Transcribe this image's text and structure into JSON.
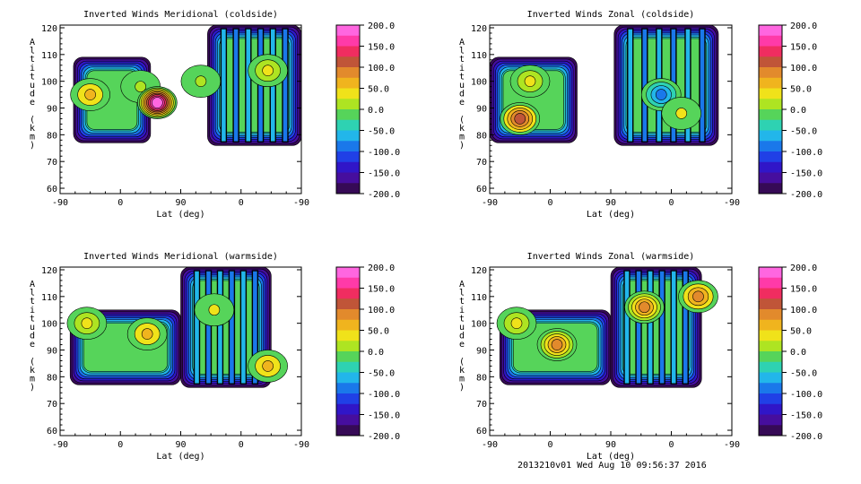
{
  "footer": "2013210v01 Wed Aug 10 09:56:37 2016",
  "colorbar": {
    "labels": [
      "200.0",
      "150.0",
      "100.0",
      "50.0",
      "0.0",
      "-50.0",
      "-100.0",
      "-150.0",
      "-200.0"
    ],
    "colors_top_to_bottom": [
      "#ff66e0",
      "#ff3aa8",
      "#f02d60",
      "#c05538",
      "#e28a2c",
      "#f0b41e",
      "#f0e21a",
      "#aee422",
      "#56d45a",
      "#2ed2b2",
      "#22b6ea",
      "#1a78ea",
      "#2040e6",
      "#3016c8",
      "#460e9e",
      "#360a56"
    ]
  },
  "chart_data": [
    {
      "type": "heatmap",
      "title": "Inverted Winds Meridional (coldside)",
      "xlabel": "Lat (deg)",
      "ylabel": "Altitude (km)",
      "x_ticks": [
        "-90",
        "0",
        "90",
        "0",
        "-90"
      ],
      "y_ticks": [
        60,
        70,
        80,
        90,
        100,
        110,
        120
      ],
      "ylim": [
        58,
        121
      ],
      "zlim": [
        -200,
        200
      ],
      "x_segment_order": [
        "-90 to 90 (ascending)",
        "90 to -90 (descending)"
      ],
      "blobs": [
        {
          "segment": "left",
          "lat": -45,
          "alt": 95,
          "value": 60
        },
        {
          "segment": "left",
          "lat": 30,
          "alt": 98,
          "value": 10
        },
        {
          "segment": "left",
          "lat": 55,
          "alt": 92,
          "value": 190
        },
        {
          "segment": "right",
          "lat": 60,
          "alt": 100,
          "value": 20
        },
        {
          "segment": "right",
          "lat": -40,
          "alt": 104,
          "value": 50
        }
      ]
    },
    {
      "type": "heatmap",
      "title": "Inverted Winds Zonal (coldside)",
      "xlabel": "Lat (deg)",
      "ylabel": "Altitude (km)",
      "x_ticks": [
        "-90",
        "0",
        "90",
        "0",
        "-90"
      ],
      "y_ticks": [
        60,
        70,
        80,
        90,
        100,
        110,
        120
      ],
      "ylim": [
        58,
        121
      ],
      "zlim": [
        -200,
        200
      ],
      "x_segment_order": [
        "-90 to 90 (ascending)",
        "90 to -90 (descending)"
      ],
      "blobs": [
        {
          "segment": "left",
          "lat": -45,
          "alt": 86,
          "value": 110
        },
        {
          "segment": "left",
          "lat": -30,
          "alt": 100,
          "value": 40
        },
        {
          "segment": "right",
          "lat": 15,
          "alt": 95,
          "value": -80
        },
        {
          "segment": "right",
          "lat": -15,
          "alt": 88,
          "value": 30
        }
      ]
    },
    {
      "type": "heatmap",
      "title": "Inverted Winds Meridional (warmside)",
      "xlabel": "Lat (deg)",
      "ylabel": "Altitude (km)",
      "x_ticks": [
        "-90",
        "0",
        "90",
        "0",
        "-90"
      ],
      "y_ticks": [
        60,
        70,
        80,
        90,
        100,
        110,
        120
      ],
      "ylim": [
        58,
        121
      ],
      "zlim": [
        -200,
        200
      ],
      "x_segment_order": [
        "-90 to 90 (ascending)",
        "90 to -90 (descending)"
      ],
      "blobs": [
        {
          "segment": "left",
          "lat": -50,
          "alt": 100,
          "value": 50
        },
        {
          "segment": "left",
          "lat": 40,
          "alt": 96,
          "value": 60
        },
        {
          "segment": "right",
          "lat": -40,
          "alt": 84,
          "value": 60
        },
        {
          "segment": "right",
          "lat": 40,
          "alt": 105,
          "value": 30
        }
      ]
    },
    {
      "type": "heatmap",
      "title": "Inverted Winds Zonal (warmside)",
      "xlabel": "Lat (deg)",
      "ylabel": "Altitude (km)",
      "x_ticks": [
        "-90",
        "0",
        "90",
        "0",
        "-90"
      ],
      "y_ticks": [
        60,
        70,
        80,
        90,
        100,
        110,
        120
      ],
      "ylim": [
        58,
        121
      ],
      "zlim": [
        -200,
        200
      ],
      "x_segment_order": [
        "-90 to 90 (ascending)",
        "90 to -90 (descending)"
      ],
      "blobs": [
        {
          "segment": "left",
          "lat": 10,
          "alt": 92,
          "value": 90
        },
        {
          "segment": "left",
          "lat": -50,
          "alt": 100,
          "value": 50
        },
        {
          "segment": "right",
          "lat": 40,
          "alt": 106,
          "value": 100
        },
        {
          "segment": "right",
          "lat": -40,
          "alt": 110,
          "value": 80
        }
      ]
    }
  ]
}
